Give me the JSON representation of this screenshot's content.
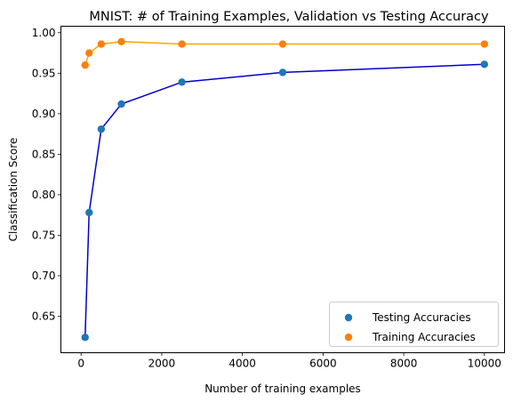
{
  "chart_data": {
    "type": "scatter",
    "title": "MNIST: # of Training Examples, Validation vs Testing Accuracy",
    "xlabel": "Number of training examples",
    "ylabel": "Classification Score",
    "xlim": [
      -500,
      10500
    ],
    "ylim": [
      0.605,
      1.008
    ],
    "xticks": [
      {
        "value": 0,
        "label": "0"
      },
      {
        "value": 2000,
        "label": "2000"
      },
      {
        "value": 4000,
        "label": "4000"
      },
      {
        "value": 6000,
        "label": "6000"
      },
      {
        "value": 8000,
        "label": "8000"
      },
      {
        "value": 10000,
        "label": "10000"
      }
    ],
    "yticks": [
      {
        "value": 0.65,
        "label": "0.65"
      },
      {
        "value": 0.7,
        "label": "0.70"
      },
      {
        "value": 0.75,
        "label": "0.75"
      },
      {
        "value": 0.8,
        "label": "0.80"
      },
      {
        "value": 0.85,
        "label": "0.85"
      },
      {
        "value": 0.9,
        "label": "0.90"
      },
      {
        "value": 0.95,
        "label": "0.95"
      },
      {
        "value": 1.0,
        "label": "1.00"
      }
    ],
    "grid": false,
    "legend_position": "lower-right",
    "series": [
      {
        "name": "Testing Accuracies",
        "marker_color": "#1f77b4",
        "line_color": "#0000cd",
        "x": [
          100,
          200,
          500,
          1000,
          2500,
          5000,
          10000
        ],
        "y": [
          0.624,
          0.778,
          0.881,
          0.912,
          0.939,
          0.951,
          0.961
        ]
      },
      {
        "name": "Training Accuracies",
        "marker_color": "#ff7f0e",
        "line_color": "#ffa500",
        "x": [
          100,
          200,
          500,
          1000,
          2500,
          5000,
          10000
        ],
        "y": [
          0.96,
          0.975,
          0.986,
          0.989,
          0.986,
          0.986,
          0.986
        ]
      }
    ]
  }
}
